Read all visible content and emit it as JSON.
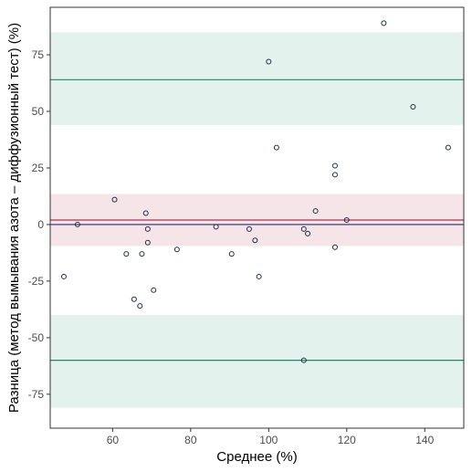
{
  "chart_data": {
    "type": "scatter",
    "xlabel": "Среднее (%)",
    "ylabel": "Разница (метод вымывания азота – диффузионный тест) (%)",
    "xlim": [
      44,
      150
    ],
    "ylim": [
      -90,
      96
    ],
    "x_ticks": [
      60,
      80,
      100,
      120,
      140
    ],
    "y_ticks": [
      -75,
      -50,
      -25,
      0,
      25,
      50,
      75
    ],
    "x_tick_labels": [
      "60",
      "80",
      "100",
      "120",
      "140"
    ],
    "y_tick_labels": [
      "-75",
      "-50",
      "-25",
      "0",
      "25",
      "50",
      "75"
    ],
    "grid": false,
    "bands": [
      {
        "name": "upper-loa-ci",
        "ymin": 44,
        "ymax": 85,
        "color": "#e3f2ec"
      },
      {
        "name": "bias-ci",
        "ymin": -9.5,
        "ymax": 13.5,
        "color": "#f5e4e8"
      },
      {
        "name": "lower-loa-ci",
        "ymin": -81,
        "ymax": -40,
        "color": "#e3f2ec"
      }
    ],
    "reference_lines": [
      {
        "name": "upper-loa-line",
        "y": 64,
        "color": "#1b8a6b"
      },
      {
        "name": "bias-line",
        "y": 2,
        "color": "#b0304f"
      },
      {
        "name": "zero-line",
        "y": 0,
        "color": "#2b2b6b"
      },
      {
        "name": "lower-loa-line",
        "y": -60,
        "color": "#1b8a6b"
      }
    ],
    "point_color": "#1a2e4a",
    "points": [
      {
        "x": 47.5,
        "y": -23
      },
      {
        "x": 51,
        "y": 0
      },
      {
        "x": 60.5,
        "y": 11
      },
      {
        "x": 63.5,
        "y": -13
      },
      {
        "x": 65.5,
        "y": -33
      },
      {
        "x": 67,
        "y": -36
      },
      {
        "x": 67.5,
        "y": -13
      },
      {
        "x": 68.5,
        "y": 5
      },
      {
        "x": 69,
        "y": -2
      },
      {
        "x": 69,
        "y": -8
      },
      {
        "x": 70.5,
        "y": -29
      },
      {
        "x": 76.5,
        "y": -11
      },
      {
        "x": 86.5,
        "y": -1
      },
      {
        "x": 90.5,
        "y": -13
      },
      {
        "x": 95,
        "y": -2
      },
      {
        "x": 96.5,
        "y": -7
      },
      {
        "x": 97.5,
        "y": -23
      },
      {
        "x": 100,
        "y": 72
      },
      {
        "x": 102,
        "y": 34
      },
      {
        "x": 109,
        "y": -2
      },
      {
        "x": 109,
        "y": -60
      },
      {
        "x": 110,
        "y": -4
      },
      {
        "x": 112,
        "y": 6
      },
      {
        "x": 117,
        "y": 26
      },
      {
        "x": 117,
        "y": 22
      },
      {
        "x": 117,
        "y": -10
      },
      {
        "x": 120,
        "y": 2
      },
      {
        "x": 129.5,
        "y": 89
      },
      {
        "x": 137,
        "y": 52
      },
      {
        "x": 146,
        "y": 34
      }
    ]
  }
}
